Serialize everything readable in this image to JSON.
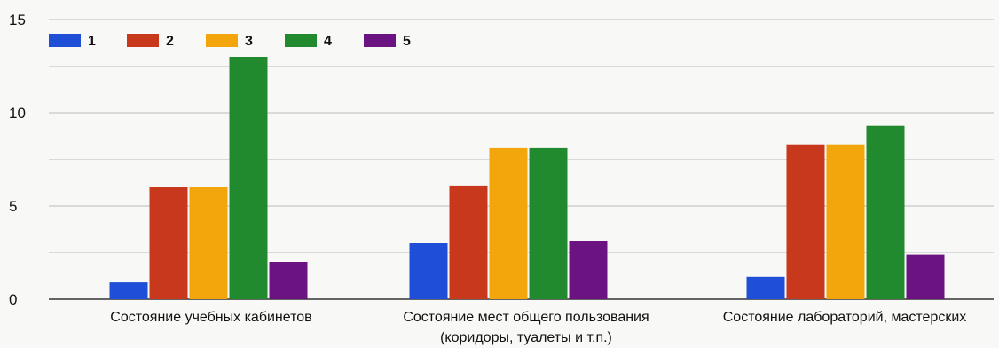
{
  "chart_data": {
    "type": "bar",
    "categories": [
      [
        "Состояние учебных кабинетов"
      ],
      [
        "Состояние мест общего пользования",
        "(коридоры, туалеты и т.п.)"
      ],
      [
        "Состояние лабораторий, мастерских"
      ]
    ],
    "series": [
      {
        "name": "1",
        "color": "#1f4fd6",
        "values": [
          0.9,
          3.0,
          1.2
        ]
      },
      {
        "name": "2",
        "color": "#c8381d",
        "values": [
          6.0,
          6.1,
          8.3
        ]
      },
      {
        "name": "3",
        "color": "#f2a60c",
        "values": [
          6.0,
          8.1,
          8.3
        ]
      },
      {
        "name": "4",
        "color": "#228a2e",
        "values": [
          13.0,
          8.1,
          9.3
        ]
      },
      {
        "name": "5",
        "color": "#6b1380",
        "values": [
          2.0,
          3.1,
          2.4
        ]
      }
    ],
    "yticks": [
      "0",
      "5",
      "10",
      "15"
    ],
    "ylim": [
      0,
      15
    ],
    "grid": true,
    "legend_position": "top-left"
  }
}
